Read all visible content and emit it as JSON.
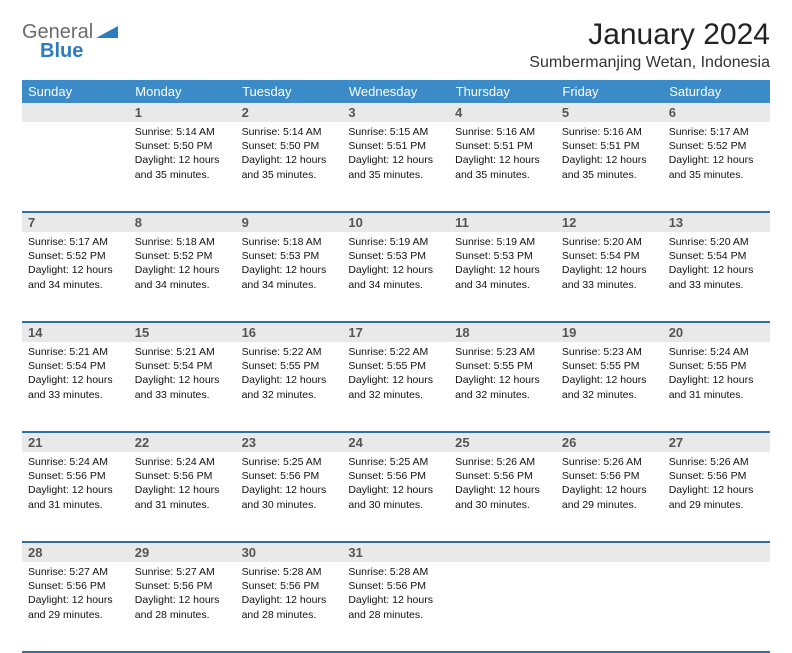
{
  "logo": {
    "general": "General",
    "blue": "Blue"
  },
  "title": "January 2024",
  "location": "Sumbermanjing Wetan, Indonesia",
  "colors": {
    "header_bg": "#3b8bc9",
    "header_text": "#ffffff",
    "daynum_bg": "#e9e9e9",
    "row_border": "#2f6fa3",
    "logo_gray": "#6b6b6b",
    "logo_blue": "#2e7cc0"
  },
  "weekdays": [
    "Sunday",
    "Monday",
    "Tuesday",
    "Wednesday",
    "Thursday",
    "Friday",
    "Saturday"
  ],
  "weeks": [
    {
      "nums": [
        "",
        "1",
        "2",
        "3",
        "4",
        "5",
        "6"
      ],
      "cells": [
        null,
        {
          "sunrise": "5:14 AM",
          "sunset": "5:50 PM",
          "daylight": "12 hours and 35 minutes."
        },
        {
          "sunrise": "5:14 AM",
          "sunset": "5:50 PM",
          "daylight": "12 hours and 35 minutes."
        },
        {
          "sunrise": "5:15 AM",
          "sunset": "5:51 PM",
          "daylight": "12 hours and 35 minutes."
        },
        {
          "sunrise": "5:16 AM",
          "sunset": "5:51 PM",
          "daylight": "12 hours and 35 minutes."
        },
        {
          "sunrise": "5:16 AM",
          "sunset": "5:51 PM",
          "daylight": "12 hours and 35 minutes."
        },
        {
          "sunrise": "5:17 AM",
          "sunset": "5:52 PM",
          "daylight": "12 hours and 35 minutes."
        }
      ]
    },
    {
      "nums": [
        "7",
        "8",
        "9",
        "10",
        "11",
        "12",
        "13"
      ],
      "cells": [
        {
          "sunrise": "5:17 AM",
          "sunset": "5:52 PM",
          "daylight": "12 hours and 34 minutes."
        },
        {
          "sunrise": "5:18 AM",
          "sunset": "5:52 PM",
          "daylight": "12 hours and 34 minutes."
        },
        {
          "sunrise": "5:18 AM",
          "sunset": "5:53 PM",
          "daylight": "12 hours and 34 minutes."
        },
        {
          "sunrise": "5:19 AM",
          "sunset": "5:53 PM",
          "daylight": "12 hours and 34 minutes."
        },
        {
          "sunrise": "5:19 AM",
          "sunset": "5:53 PM",
          "daylight": "12 hours and 34 minutes."
        },
        {
          "sunrise": "5:20 AM",
          "sunset": "5:54 PM",
          "daylight": "12 hours and 33 minutes."
        },
        {
          "sunrise": "5:20 AM",
          "sunset": "5:54 PM",
          "daylight": "12 hours and 33 minutes."
        }
      ]
    },
    {
      "nums": [
        "14",
        "15",
        "16",
        "17",
        "18",
        "19",
        "20"
      ],
      "cells": [
        {
          "sunrise": "5:21 AM",
          "sunset": "5:54 PM",
          "daylight": "12 hours and 33 minutes."
        },
        {
          "sunrise": "5:21 AM",
          "sunset": "5:54 PM",
          "daylight": "12 hours and 33 minutes."
        },
        {
          "sunrise": "5:22 AM",
          "sunset": "5:55 PM",
          "daylight": "12 hours and 32 minutes."
        },
        {
          "sunrise": "5:22 AM",
          "sunset": "5:55 PM",
          "daylight": "12 hours and 32 minutes."
        },
        {
          "sunrise": "5:23 AM",
          "sunset": "5:55 PM",
          "daylight": "12 hours and 32 minutes."
        },
        {
          "sunrise": "5:23 AM",
          "sunset": "5:55 PM",
          "daylight": "12 hours and 32 minutes."
        },
        {
          "sunrise": "5:24 AM",
          "sunset": "5:55 PM",
          "daylight": "12 hours and 31 minutes."
        }
      ]
    },
    {
      "nums": [
        "21",
        "22",
        "23",
        "24",
        "25",
        "26",
        "27"
      ],
      "cells": [
        {
          "sunrise": "5:24 AM",
          "sunset": "5:56 PM",
          "daylight": "12 hours and 31 minutes."
        },
        {
          "sunrise": "5:24 AM",
          "sunset": "5:56 PM",
          "daylight": "12 hours and 31 minutes."
        },
        {
          "sunrise": "5:25 AM",
          "sunset": "5:56 PM",
          "daylight": "12 hours and 30 minutes."
        },
        {
          "sunrise": "5:25 AM",
          "sunset": "5:56 PM",
          "daylight": "12 hours and 30 minutes."
        },
        {
          "sunrise": "5:26 AM",
          "sunset": "5:56 PM",
          "daylight": "12 hours and 30 minutes."
        },
        {
          "sunrise": "5:26 AM",
          "sunset": "5:56 PM",
          "daylight": "12 hours and 29 minutes."
        },
        {
          "sunrise": "5:26 AM",
          "sunset": "5:56 PM",
          "daylight": "12 hours and 29 minutes."
        }
      ]
    },
    {
      "nums": [
        "28",
        "29",
        "30",
        "31",
        "",
        "",
        ""
      ],
      "cells": [
        {
          "sunrise": "5:27 AM",
          "sunset": "5:56 PM",
          "daylight": "12 hours and 29 minutes."
        },
        {
          "sunrise": "5:27 AM",
          "sunset": "5:56 PM",
          "daylight": "12 hours and 28 minutes."
        },
        {
          "sunrise": "5:28 AM",
          "sunset": "5:56 PM",
          "daylight": "12 hours and 28 minutes."
        },
        {
          "sunrise": "5:28 AM",
          "sunset": "5:56 PM",
          "daylight": "12 hours and 28 minutes."
        },
        null,
        null,
        null
      ]
    }
  ],
  "labels": {
    "sunrise": "Sunrise:",
    "sunset": "Sunset:",
    "daylight": "Daylight:"
  }
}
